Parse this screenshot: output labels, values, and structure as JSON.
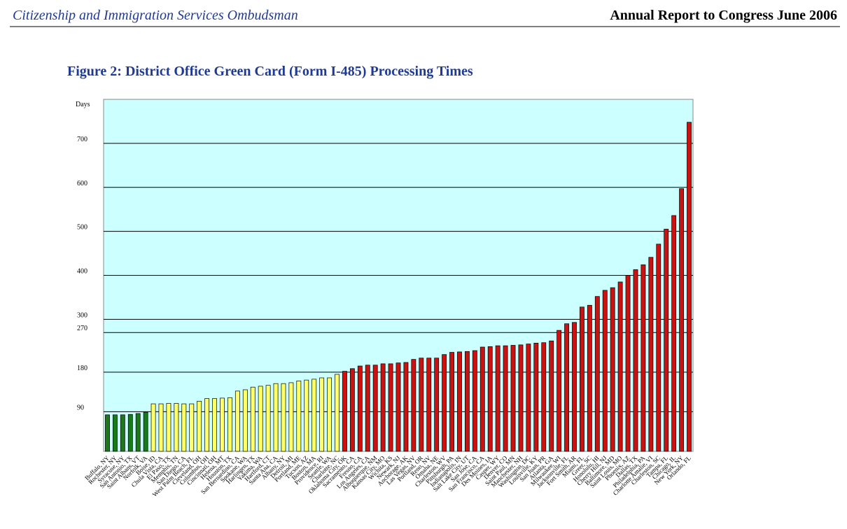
{
  "header": {
    "left": "Citizenship and Immigration Services Ombudsman",
    "right": "Annual Report to Congress June 2006"
  },
  "chart_data": {
    "type": "bar",
    "title": "Figure 2:  District Office Green Card (Form I-485) Processing Times",
    "y_label": "Days",
    "categories": [
      "Buffalo, NY",
      "Rochester, NY",
      "Syracuse, NY",
      "San Antonio, TX",
      "Saint Albans, VT",
      "Norfolk, VA",
      "Boise, ID",
      "Chula Vista, CA",
      "El Paso, TX",
      "Memphis, TN",
      "San Diego, CA",
      "West Palm Beach, FL",
      "Cleveland, OH",
      "Columbus, OH",
      "Cincinnati, OH",
      "Helena, MT",
      "Houston, TX",
      "San Bernardino, CA",
      "Spokane, WA",
      "Harlingen, TX",
      "Yakima, WA",
      "Hartford, CT",
      "Santa Ana, CA",
      "Albany, NY",
      "Detroit, MI",
      "Portland, ME",
      "Tucson, AZ",
      "Boston, MA",
      "Providence, RI",
      "Seattle, WA",
      "Charlotte, NC",
      "Oklahoma City, OK",
      "Sacramento, CA",
      "Fresno, CA",
      "Los Angeles, CA",
      "Albuquerque, NM",
      "Kansas City, MO",
      "Wichita, KS",
      "Newark, NJ",
      "Anchorage, AK",
      "Las Vegas, NV",
      "Portland, OR",
      "Reno, NV",
      "Omaha, NE",
      "Charleston, WV",
      "Pittsburgh, PA",
      "Indianapolis, IN",
      "Salt Lake City, UT",
      "San Jose, CA",
      "San Francisco, CA",
      "Des Moines, IA",
      "Casper, WY",
      "Denver, CO",
      "Saint Paul, MN",
      "Manchester, NH",
      "Washington, DC",
      "Louisville, KY",
      "San Juan, PR",
      "Atlanta, GA",
      "Milwaukee, WI",
      "Jacksonville, FL",
      "Fort Smith, AR",
      "Miami, FL",
      "Greer, SC",
      "Honolulu, HI",
      "Cherry Hill, NJ",
      "Baltimore, MD",
      "Saint Louis, MO",
      "Phoenix, AZ",
      "Dallas, TX",
      "Philadelphia, PA",
      "Charlotte Amalie, VI",
      "Charleston, SC",
      "Tampa, FL",
      "Chicago, IL",
      "New York, NY",
      "Orlando, FL"
    ],
    "values": [
      83,
      83,
      83,
      84,
      86,
      89,
      108,
      108,
      109,
      109,
      108,
      108,
      114,
      120,
      120,
      121,
      122,
      137,
      140,
      146,
      148,
      150,
      154,
      154,
      156,
      160,
      162,
      164,
      167,
      167,
      175,
      182,
      188,
      194,
      196,
      196,
      199,
      199,
      201,
      202,
      209,
      212,
      212,
      212,
      220,
      225,
      226,
      227,
      229,
      237,
      238,
      240,
      240,
      241,
      242,
      244,
      246,
      247,
      251,
      275,
      290,
      293,
      328,
      332,
      352,
      366,
      372,
      385,
      400,
      413,
      424,
      441,
      471,
      505,
      536,
      597,
      748
    ],
    "group_colors": [
      "#1a7a1a",
      "#ffff66",
      "#cc1111"
    ],
    "group_limits": [
      90,
      180
    ],
    "ylim": [
      0,
      800
    ],
    "yticks": [
      90,
      180,
      270,
      300,
      400,
      500,
      600,
      700
    ],
    "grid": true,
    "background": "#ccffff"
  }
}
